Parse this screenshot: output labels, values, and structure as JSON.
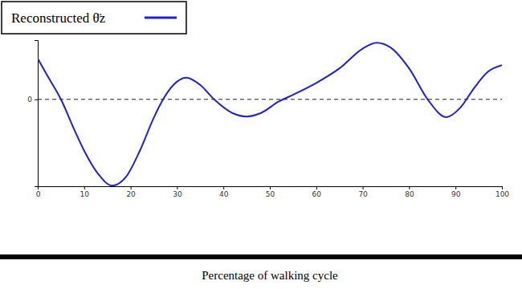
{
  "chart_data": {
    "type": "line",
    "x_label": "Percentage of walking cycle",
    "x": [
      0,
      2,
      5,
      8,
      10,
      13,
      16,
      19,
      22,
      25,
      27,
      30,
      32,
      35,
      38,
      42,
      45,
      48,
      52,
      55,
      60,
      65,
      70,
      73,
      76,
      80,
      84,
      88,
      91,
      94,
      97,
      100
    ],
    "series": [
      {
        "name": "Reconstructed θ̈z",
        "color": "#1f1fd6",
        "values": [
          2.07,
          1.23,
          0,
          -1.6,
          -2.6,
          -3.77,
          -4.37,
          -3.93,
          -2.6,
          -0.93,
          0,
          0.9,
          1.1,
          0.73,
          0,
          -0.7,
          -0.87,
          -0.7,
          -0.1,
          0.23,
          0.83,
          1.57,
          2.57,
          2.87,
          2.63,
          1.57,
          0,
          -0.9,
          -0.43,
          0.57,
          1.4,
          1.73
        ]
      }
    ],
    "xlim": [
      0,
      100
    ],
    "xticks": [
      0,
      10,
      20,
      30,
      40,
      50,
      60,
      70,
      80,
      90,
      100
    ],
    "ylim": [
      -4.4,
      3
    ],
    "yticks": [
      0
    ],
    "grid": true,
    "legend": "upper left"
  }
}
